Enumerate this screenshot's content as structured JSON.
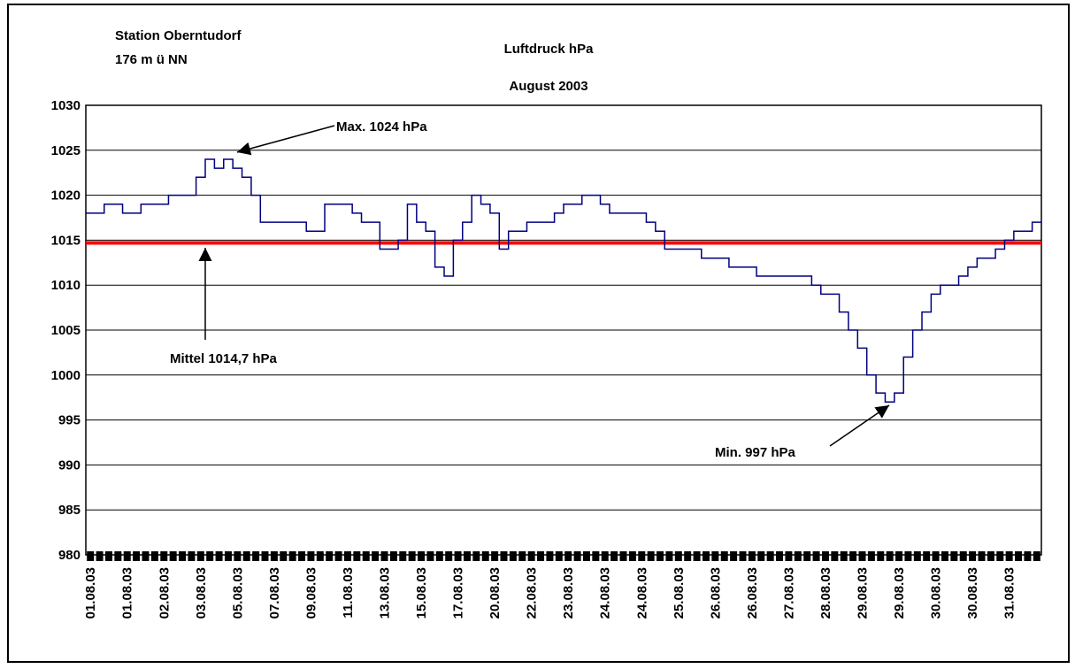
{
  "chart_data": {
    "type": "line",
    "title": "Luftdruck hPa",
    "subtitle": "August 2003",
    "station": [
      "Station Oberntudorf",
      "176 m ü NN"
    ],
    "categories": [
      "01.08.03",
      null,
      null,
      null,
      "01.08.03",
      null,
      null,
      null,
      "02.08.03",
      null,
      null,
      null,
      "03.08.03",
      null,
      null,
      null,
      "05.08.03",
      null,
      null,
      null,
      "07.08.03",
      null,
      null,
      null,
      "09.08.03",
      null,
      null,
      null,
      "11.08.03",
      null,
      null,
      null,
      "13.08.03",
      null,
      null,
      null,
      "15.08.03",
      null,
      null,
      null,
      "17.08.03",
      null,
      null,
      null,
      "20.08.03",
      null,
      null,
      null,
      "22.08.03",
      null,
      null,
      null,
      "23.08.03",
      null,
      null,
      null,
      "24.08.03",
      null,
      null,
      null,
      "24.08.03",
      null,
      null,
      null,
      "25.08.03",
      null,
      null,
      null,
      "26.08.03",
      null,
      null,
      null,
      "26.08.03",
      null,
      null,
      null,
      "27.08.03",
      null,
      null,
      null,
      "28.08.03",
      null,
      null,
      null,
      "29.08.03",
      null,
      null,
      null,
      "29.08.03",
      null,
      null,
      null,
      "30.08.03",
      null,
      null,
      null,
      "30.08.03",
      null,
      null,
      null,
      "31.08.03",
      null,
      null,
      null
    ],
    "series": [
      {
        "name": "Luftdruck",
        "color": "#000080",
        "values": [
          1018,
          1018,
          1019,
          1019,
          1018,
          1018,
          1019,
          1019,
          1019,
          1020,
          1020,
          1020,
          1022,
          1024,
          1023,
          1024,
          1023,
          1022,
          1020,
          1017,
          1017,
          1017,
          1017,
          1017,
          1016,
          1016,
          1019,
          1019,
          1019,
          1018,
          1017,
          1017,
          1014,
          1014,
          1015,
          1019,
          1017,
          1016,
          1012,
          1011,
          1015,
          1017,
          1020,
          1019,
          1018,
          1014,
          1016,
          1016,
          1017,
          1017,
          1017,
          1018,
          1019,
          1019,
          1020,
          1020,
          1019,
          1018,
          1018,
          1018,
          1018,
          1017,
          1016,
          1014,
          1014,
          1014,
          1014,
          1013,
          1013,
          1013,
          1012,
          1012,
          1012,
          1011,
          1011,
          1011,
          1011,
          1011,
          1011,
          1010,
          1009,
          1009,
          1007,
          1005,
          1003,
          1000,
          998,
          997,
          998,
          1002,
          1005,
          1007,
          1009,
          1010,
          1010,
          1011,
          1012,
          1013,
          1013,
          1014,
          1015,
          1016,
          1016,
          1017
        ]
      }
    ],
    "mean_line": {
      "value": 1014.7,
      "color": "#ff0000"
    },
    "annotations": [
      "Max. 1024 hPa",
      "Mittel 1014,7 hPa",
      "Min. 997 hPa"
    ],
    "ylim": [
      980,
      1030
    ],
    "yticks": [
      980,
      985,
      990,
      995,
      1000,
      1005,
      1010,
      1015,
      1020,
      1025,
      1030
    ],
    "grid": true
  }
}
